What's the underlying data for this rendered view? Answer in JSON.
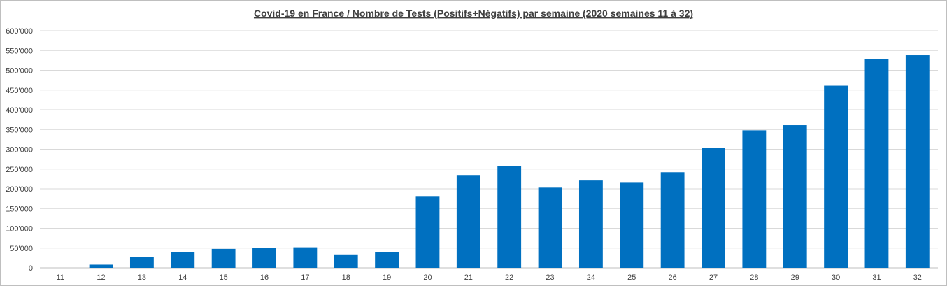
{
  "chart_data": {
    "type": "bar",
    "title": "Covid-19 en France / Nombre de Tests (Positifs+Négatifs) par semaine (2020 semaines 11 à 32)",
    "categories": [
      "11",
      "12",
      "13",
      "14",
      "15",
      "16",
      "17",
      "18",
      "19",
      "20",
      "21",
      "22",
      "23",
      "24",
      "25",
      "26",
      "27",
      "28",
      "29",
      "30",
      "31",
      "32"
    ],
    "series": [
      {
        "values": [
          0,
          8000,
          27000,
          40000,
          48000,
          50000,
          52000,
          34000,
          40000,
          180000,
          235000,
          257000,
          203000,
          221000,
          217000,
          242000,
          304000,
          348000,
          361000,
          461000,
          528000,
          538000
        ],
        "color": "#0070c0"
      }
    ],
    "ylim": [
      0,
      600000
    ],
    "yticks": [
      0,
      50000,
      100000,
      150000,
      200000,
      250000,
      300000,
      350000,
      400000,
      450000,
      500000,
      550000,
      600000
    ],
    "ytick_labels": [
      "0",
      "50'000",
      "100'000",
      "150'000",
      "200'000",
      "250'000",
      "300'000",
      "350'000",
      "400'000",
      "450'000",
      "500'000",
      "550'000",
      "600'000"
    ],
    "grid": true,
    "legend": "none",
    "colors": {
      "bar": "#0070c0",
      "grid": "#d9d9d9",
      "text": "#404040"
    }
  }
}
